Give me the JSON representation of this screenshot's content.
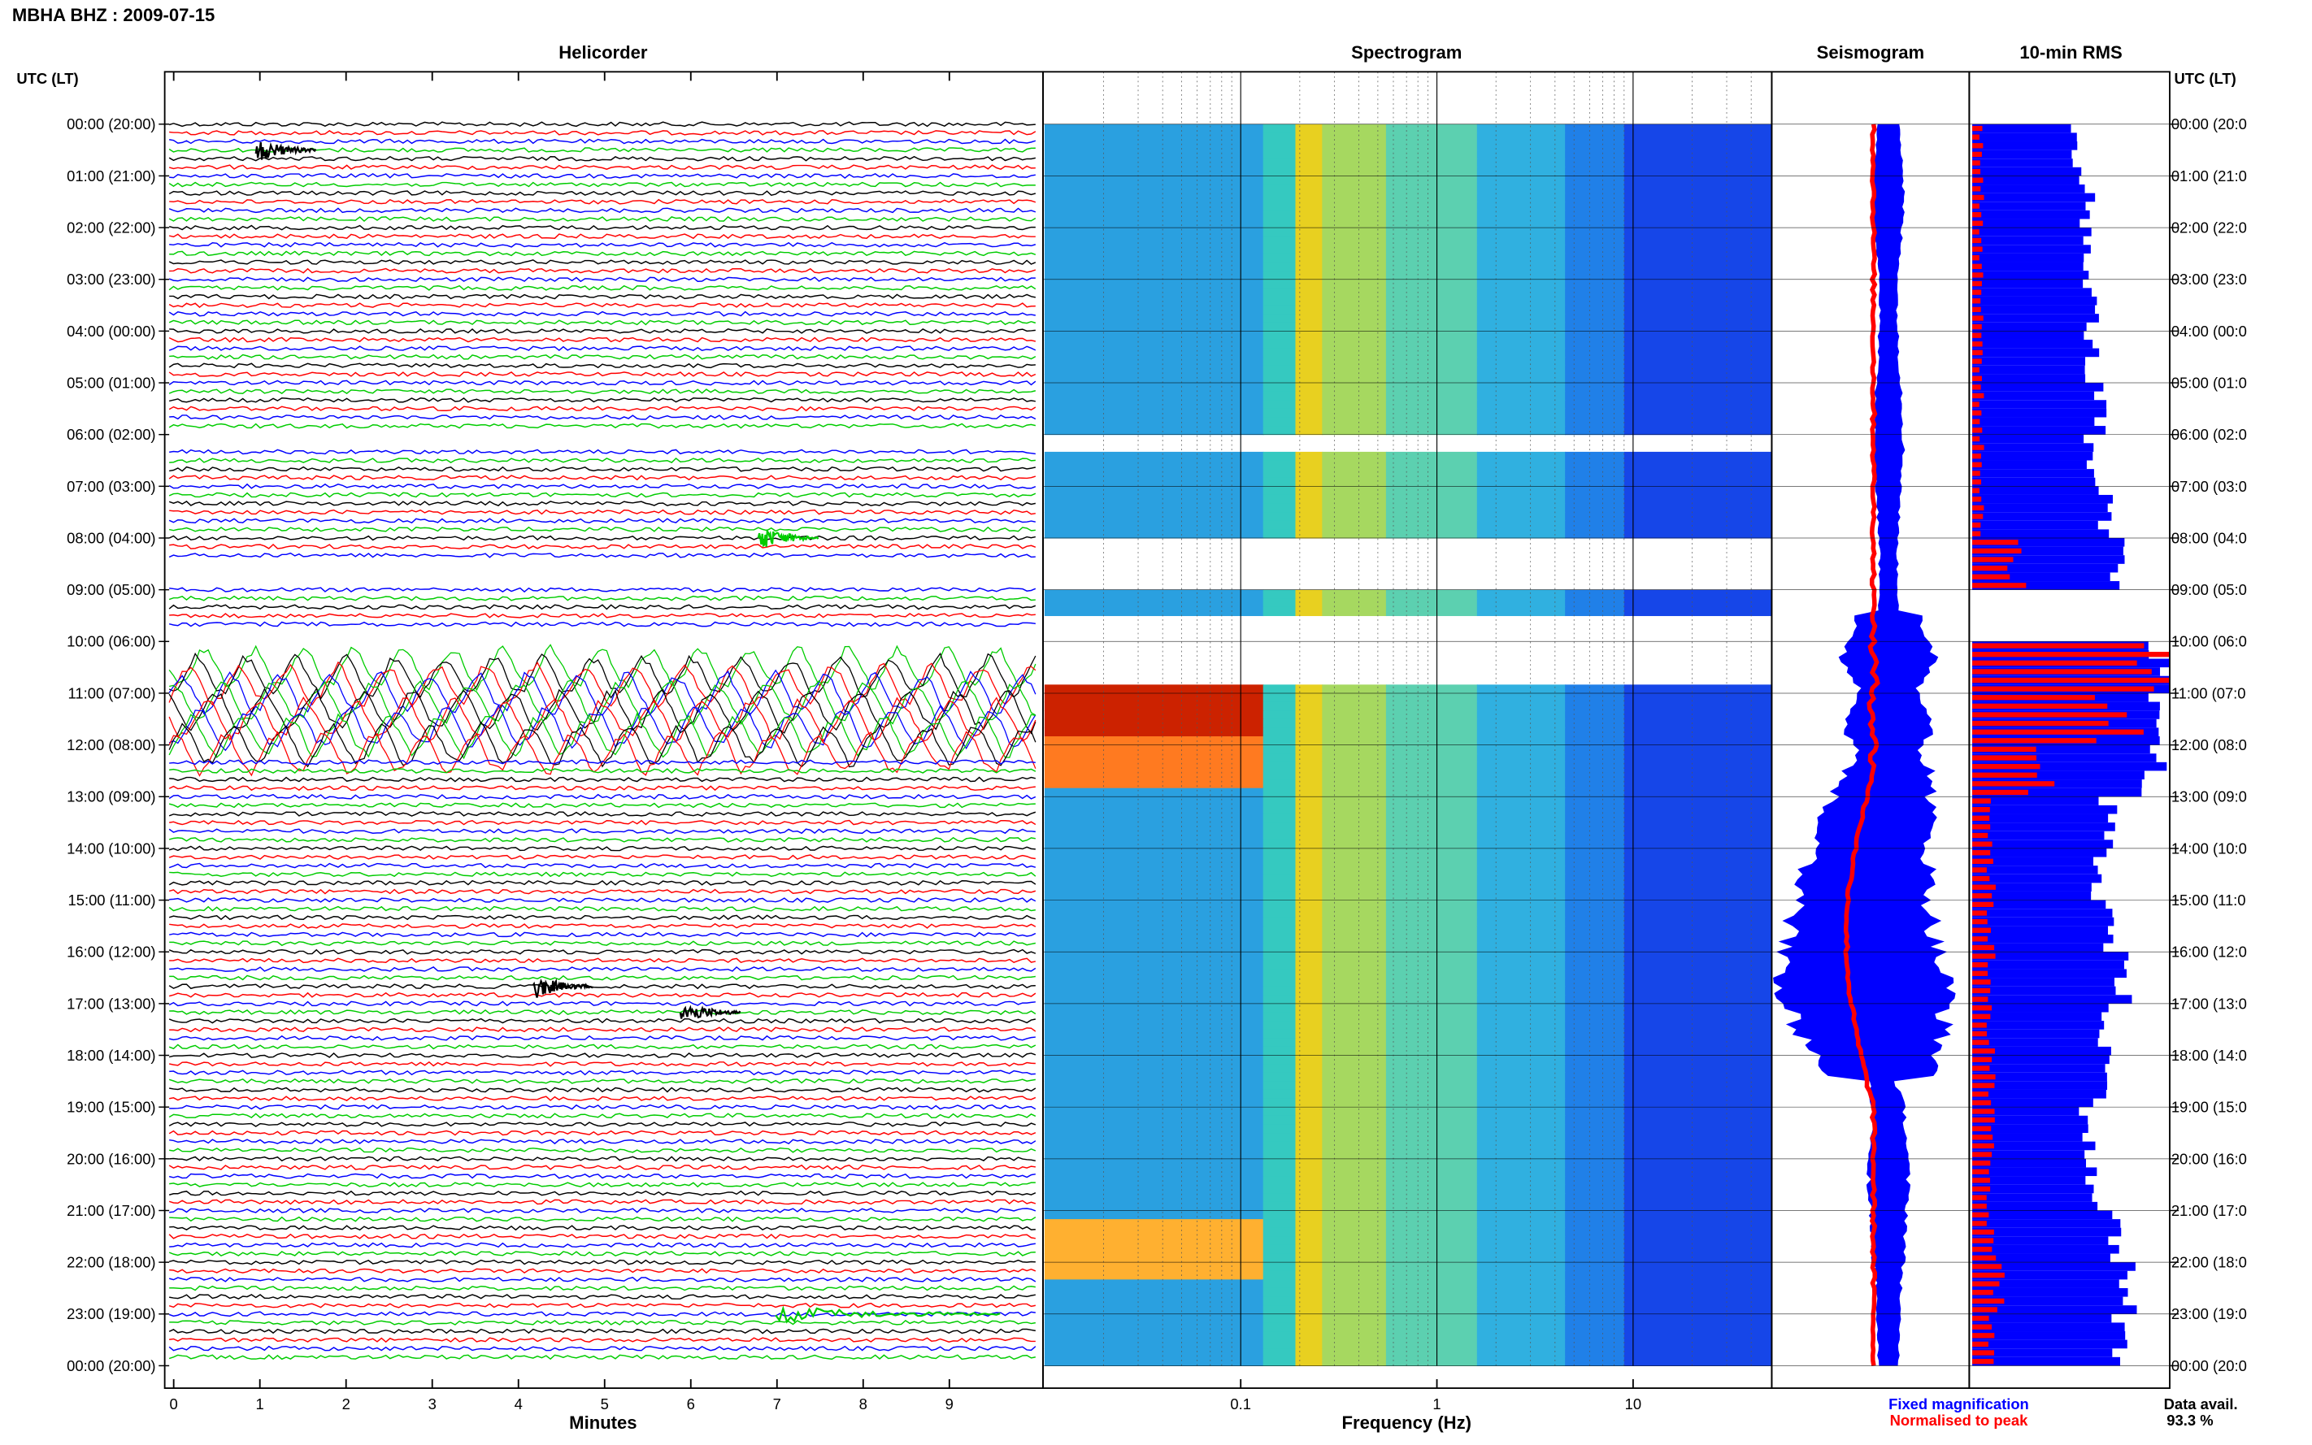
{
  "header": {
    "station_date": "MBHA BHZ : 2009-07-15"
  },
  "panels": {
    "helicorder": "Helicorder",
    "spectrogram": "Spectrogram",
    "seismogram": "Seismogram",
    "rms": "10-min RMS"
  },
  "axis": {
    "time_label_left": "UTC (LT)",
    "time_label_right": "UTC (LT)",
    "hours": [
      "00:00 (20:00)",
      "01:00 (21:00)",
      "02:00 (22:00)",
      "03:00 (23:00)",
      "04:00 (00:00)",
      "05:00 (01:00)",
      "06:00 (02:00)",
      "07:00 (03:00)",
      "08:00 (04:00)",
      "09:00 (05:00)",
      "10:00 (06:00)",
      "11:00 (07:00)",
      "12:00 (08:00)",
      "13:00 (09:00)",
      "14:00 (10:00)",
      "15:00 (11:00)",
      "16:00 (12:00)",
      "17:00 (13:00)",
      "18:00 (14:00)",
      "19:00 (15:00)",
      "20:00 (16:00)",
      "21:00 (17:00)",
      "22:00 (18:00)",
      "23:00 (19:00)",
      "00:00 (20:00)"
    ],
    "hours_right": [
      "00:00 (20:0",
      "01:00 (21:0",
      "02:00 (22:0",
      "03:00 (23:0",
      "04:00 (00:0",
      "05:00 (01:0",
      "06:00 (02:0",
      "07:00 (03:0",
      "08:00 (04:0",
      "09:00 (05:0",
      "10:00 (06:0",
      "11:00 (07:0",
      "12:00 (08:0",
      "13:00 (09:0",
      "14:00 (10:0",
      "15:00 (11:0",
      "16:00 (12:0",
      "17:00 (13:0",
      "18:00 (14:0",
      "19:00 (15:0",
      "20:00 (16:0",
      "21:00 (17:0",
      "22:00 (18:0",
      "23:00 (19:0",
      "00:00 (20:0"
    ],
    "minutes_ticks": [
      "0",
      "1",
      "2",
      "3",
      "4",
      "5",
      "6",
      "7",
      "8",
      "9"
    ],
    "minutes_label": "Minutes",
    "freq_ticks": [
      "0.1",
      "1",
      "10"
    ],
    "freq_label": "Frequency (Hz)"
  },
  "legend": {
    "fixed": "Fixed magnification",
    "normalised": "Normalised to peak",
    "fixed_color": "#0000ff",
    "normalised_color": "#ff0000"
  },
  "availability": {
    "label": "Data avail.",
    "value": "93.3 %"
  },
  "colors": {
    "trace_cycle": [
      "#000000",
      "#ff0000",
      "#0000ff",
      "#00cc00"
    ],
    "spectrogram_base": "#1646e8"
  },
  "chart_data": [
    {
      "type": "line",
      "title": "Helicorder",
      "xlabel": "Minutes",
      "xlim": [
        0,
        10
      ],
      "rows_per_hour": 6,
      "hours": 24,
      "gaps_utc_hours": [
        [
          6.0,
          6.3
        ],
        [
          8.5,
          9.0
        ],
        [
          9.7,
          10.5
        ]
      ],
      "events": [
        {
          "utc": "00:30",
          "minute": 1.0,
          "desc": "small event"
        },
        {
          "utc": "08:00",
          "minute": 6.8,
          "desc": "event"
        },
        {
          "utc": "16:40",
          "minute": 4.2,
          "desc": "event"
        },
        {
          "utc": "17:10",
          "minute": 5.9,
          "desc": "event"
        },
        {
          "utc": "23:00",
          "minute": 7.0,
          "desc": "long-duration signal"
        }
      ],
      "high_amplitude_utc": [
        10.0,
        12.3
      ]
    },
    {
      "type": "heatmap",
      "title": "Spectrogram",
      "xlabel": "Frequency (Hz)",
      "x_scale": "log",
      "xlim": [
        0.01,
        50
      ],
      "ylim_utc_hours": [
        0,
        24
      ],
      "microseism_peak_hz": 0.2,
      "strong_low_freq_utc": [
        10.8,
        12.8
      ],
      "gaps_utc_hours": [
        [
          6.0,
          6.3
        ],
        [
          8.0,
          9.0
        ],
        [
          9.5,
          10.8
        ]
      ]
    },
    {
      "type": "line",
      "title": "Seismogram",
      "series": [
        {
          "name": "Fixed magnification",
          "color": "#0000ff"
        },
        {
          "name": "Normalised to peak",
          "color": "#ff0000"
        }
      ],
      "ylim_utc_hours": [
        0,
        24
      ]
    },
    {
      "type": "bar",
      "title": "10-min RMS",
      "ylim_utc_hours": [
        0,
        24
      ],
      "series": [
        {
          "name": "Fixed magnification",
          "color": "#0000ff",
          "hourly_relative": [
            0.55,
            0.6,
            0.58,
            0.62,
            0.62,
            0.65,
            0.6,
            0.68,
            0.75,
            0.0,
            0.98,
            0.97,
            0.95,
            0.7,
            0.65,
            0.72,
            0.78,
            0.7,
            0.68,
            0.6,
            0.62,
            0.74,
            0.8,
            0.75
          ]
        },
        {
          "name": "Normalised to peak",
          "color": "#ff0000",
          "hourly_relative": [
            0.05,
            0.05,
            0.05,
            0.05,
            0.05,
            0.05,
            0.05,
            0.05,
            0.25,
            0.0,
            0.95,
            0.8,
            0.4,
            0.1,
            0.1,
            0.1,
            0.1,
            0.1,
            0.1,
            0.1,
            0.1,
            0.1,
            0.15,
            0.1
          ]
        }
      ]
    }
  ]
}
